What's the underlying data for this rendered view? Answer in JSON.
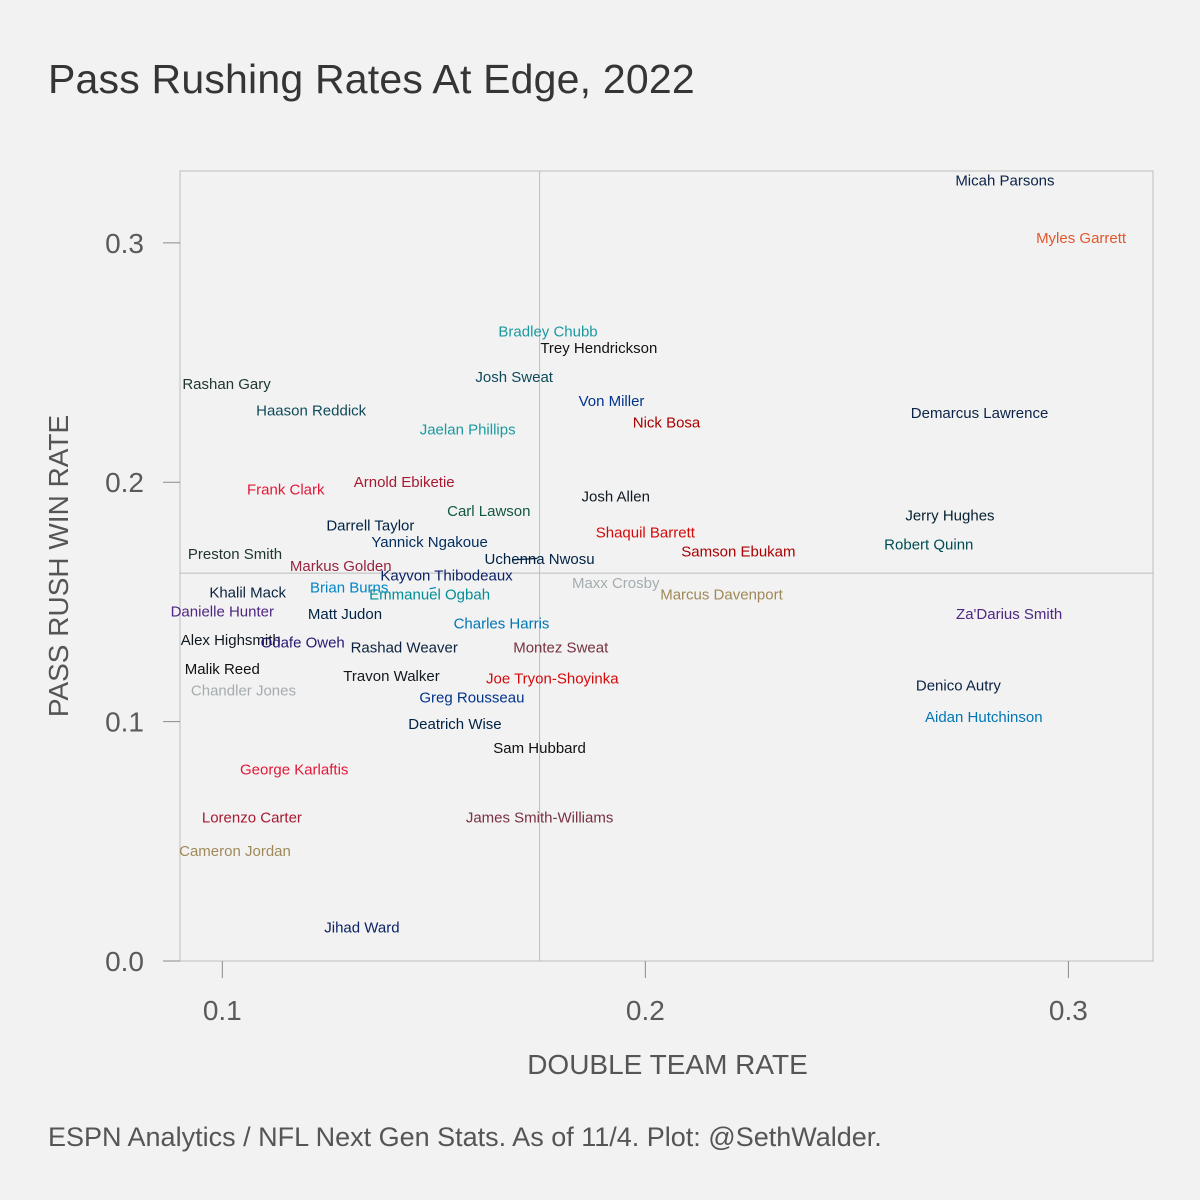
{
  "chart_data": {
    "type": "scatter",
    "title": "Pass Rushing Rates At Edge, 2022",
    "caption": "ESPN Analytics / NFL Next Gen Stats. As of 11/4. Plot: @SethWalder.",
    "xlabel": "DOUBLE TEAM RATE",
    "ylabel": "PASS RUSH WIN RATE",
    "xlim": [
      0.09,
      0.32
    ],
    "ylim": [
      0.0,
      0.33
    ],
    "xticks": [
      "0.1",
      "0.2",
      "0.3"
    ],
    "yticks": [
      "0.0",
      "0.1",
      "0.2",
      "0.3"
    ],
    "reference_lines": {
      "x": 0.175,
      "y": 0.162
    },
    "grid": false,
    "points": [
      {
        "name": "Micah Parsons",
        "x": 0.285,
        "y": 0.326,
        "color": "#0b2347"
      },
      {
        "name": "Myles Garrett",
        "x": 0.303,
        "y": 0.302,
        "color": "#e0582c"
      },
      {
        "name": "Bradley Chubb",
        "x": 0.177,
        "y": 0.263,
        "color": "#1a9aa0"
      },
      {
        "name": "Trey Hendrickson",
        "x": 0.189,
        "y": 0.256,
        "color": "#111111"
      },
      {
        "name": "Josh Sweat",
        "x": 0.169,
        "y": 0.244,
        "color": "#0e4a5a"
      },
      {
        "name": "Rashan Gary",
        "x": 0.101,
        "y": 0.241,
        "color": "#203731"
      },
      {
        "name": "Haason Reddick",
        "x": 0.121,
        "y": 0.23,
        "color": "#0e4a5a"
      },
      {
        "name": "Von Miller",
        "x": 0.192,
        "y": 0.234,
        "color": "#00338d"
      },
      {
        "name": "Nick Bosa",
        "x": 0.205,
        "y": 0.225,
        "color": "#aa0000"
      },
      {
        "name": "Demarcus Lawrence",
        "x": 0.279,
        "y": 0.229,
        "color": "#0b2347"
      },
      {
        "name": "Jaelan Phillips",
        "x": 0.158,
        "y": 0.222,
        "color": "#1a9aa0"
      },
      {
        "name": "Arnold Ebiketie",
        "x": 0.143,
        "y": 0.2,
        "color": "#a71930"
      },
      {
        "name": "Frank Clark",
        "x": 0.115,
        "y": 0.197,
        "color": "#e31837"
      },
      {
        "name": "Josh Allen",
        "x": 0.193,
        "y": 0.194,
        "color": "#101820"
      },
      {
        "name": "Carl Lawson",
        "x": 0.163,
        "y": 0.188,
        "color": "#125740"
      },
      {
        "name": "Jerry Hughes",
        "x": 0.272,
        "y": 0.186,
        "color": "#03202f"
      },
      {
        "name": "Darrell Taylor",
        "x": 0.135,
        "y": 0.182,
        "color": "#002244"
      },
      {
        "name": "Shaquil Barrett",
        "x": 0.2,
        "y": 0.179,
        "color": "#d50a0a"
      },
      {
        "name": "Yannick Ngakoue",
        "x": 0.149,
        "y": 0.175,
        "color": "#002c5f"
      },
      {
        "name": "Robert Quinn",
        "x": 0.267,
        "y": 0.174,
        "color": "#004c54"
      },
      {
        "name": "Samson Ebukam",
        "x": 0.222,
        "y": 0.171,
        "color": "#aa0000"
      },
      {
        "name": "Preston Smith",
        "x": 0.103,
        "y": 0.17,
        "color": "#203731"
      },
      {
        "name": "Uchenna Nwosu",
        "x": 0.175,
        "y": 0.168,
        "color": "#002244"
      },
      {
        "name": "Markus Golden",
        "x": 0.128,
        "y": 0.165,
        "color": "#97233f"
      },
      {
        "name": "Kayvon Thibodeaux",
        "x": 0.153,
        "y": 0.161,
        "color": "#0b2265"
      },
      {
        "name": "Maxx Crosby",
        "x": 0.193,
        "y": 0.158,
        "color": "#a5acaf"
      },
      {
        "name": "Brian Burns",
        "x": 0.13,
        "y": 0.156,
        "color": "#0085ca"
      },
      {
        "name": "Khalil Mack",
        "x": 0.106,
        "y": 0.154,
        "color": "#0c2340"
      },
      {
        "name": "Emmanuel Ogbah",
        "x": 0.149,
        "y": 0.153,
        "color": "#008e97"
      },
      {
        "name": "Marcus Davenport",
        "x": 0.218,
        "y": 0.153,
        "color": "#9f8958"
      },
      {
        "name": "Danielle Hunter",
        "x": 0.1,
        "y": 0.146,
        "color": "#4f2683"
      },
      {
        "name": "Za'Darius Smith",
        "x": 0.286,
        "y": 0.145,
        "color": "#4f2683"
      },
      {
        "name": "Matt Judon",
        "x": 0.129,
        "y": 0.145,
        "color": "#002244"
      },
      {
        "name": "Charles Harris",
        "x": 0.166,
        "y": 0.141,
        "color": "#0076b6"
      },
      {
        "name": "Alex Highsmith",
        "x": 0.102,
        "y": 0.134,
        "color": "#101820"
      },
      {
        "name": "Odafe Oweh",
        "x": 0.119,
        "y": 0.133,
        "color": "#241773"
      },
      {
        "name": "Rashad Weaver",
        "x": 0.143,
        "y": 0.131,
        "color": "#0c2340"
      },
      {
        "name": "Montez Sweat",
        "x": 0.18,
        "y": 0.131,
        "color": "#773141"
      },
      {
        "name": "Malik Reed",
        "x": 0.1,
        "y": 0.122,
        "color": "#111111"
      },
      {
        "name": "Travon Walker",
        "x": 0.14,
        "y": 0.119,
        "color": "#101820"
      },
      {
        "name": "Joe Tryon-Shoyinka",
        "x": 0.178,
        "y": 0.118,
        "color": "#d50a0a"
      },
      {
        "name": "Denico Autry",
        "x": 0.274,
        "y": 0.115,
        "color": "#0c2340"
      },
      {
        "name": "Chandler Jones",
        "x": 0.105,
        "y": 0.113,
        "color": "#a5acaf"
      },
      {
        "name": "Greg Rousseau",
        "x": 0.159,
        "y": 0.11,
        "color": "#00338d"
      },
      {
        "name": "Aidan Hutchinson",
        "x": 0.28,
        "y": 0.102,
        "color": "#0076b6"
      },
      {
        "name": "Deatrich Wise",
        "x": 0.155,
        "y": 0.099,
        "color": "#002244"
      },
      {
        "name": "Sam Hubbard",
        "x": 0.175,
        "y": 0.089,
        "color": "#111111"
      },
      {
        "name": "George Karlaftis",
        "x": 0.117,
        "y": 0.08,
        "color": "#e31837"
      },
      {
        "name": "Lorenzo Carter",
        "x": 0.107,
        "y": 0.06,
        "color": "#a71930"
      },
      {
        "name": "James Smith-Williams",
        "x": 0.175,
        "y": 0.06,
        "color": "#773141"
      },
      {
        "name": "Cameron Jordan",
        "x": 0.103,
        "y": 0.046,
        "color": "#9f8958"
      },
      {
        "name": "Jihad Ward",
        "x": 0.133,
        "y": 0.014,
        "color": "#0b2265"
      }
    ]
  }
}
